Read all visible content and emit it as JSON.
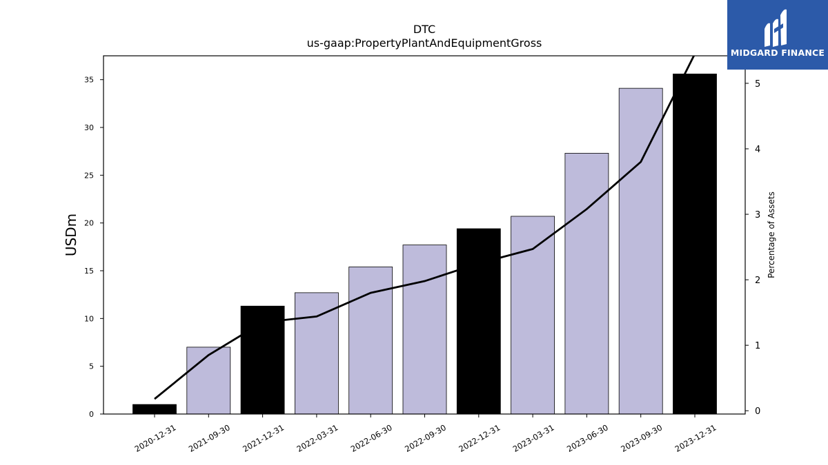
{
  "chart_data": {
    "type": "bar",
    "title": "DTC",
    "subtitle": "us-gaap:PropertyPlantAndEquipmentGross",
    "ylabel": "USDm",
    "y2label": "Percentage of Assets",
    "categories": [
      "2020-12-31",
      "2021-09-30",
      "2021-12-31",
      "2022-03-31",
      "2022-06-30",
      "2022-09-30",
      "2022-12-31",
      "2023-03-31",
      "2023-06-30",
      "2023-09-30",
      "2023-12-31"
    ],
    "values": [
      1.0,
      7.0,
      11.3,
      12.7,
      15.4,
      17.7,
      19.4,
      20.7,
      27.3,
      34.1,
      35.6
    ],
    "bar_colors": [
      "#000000",
      "#bebbdb",
      "#000000",
      "#bebbdb",
      "#bebbdb",
      "#bebbdb",
      "#000000",
      "#bebbdb",
      "#bebbdb",
      "#bebbdb",
      "#000000"
    ],
    "line_series": {
      "axis": "right",
      "color": "#000000",
      "values": [
        0.18,
        0.85,
        1.35,
        1.44,
        1.8,
        1.98,
        2.25,
        2.47,
        3.08,
        3.8,
        5.45
      ]
    },
    "ylim": [
      0,
      37.5
    ],
    "yticks": [
      0,
      5,
      10,
      15,
      20,
      25,
      30,
      35
    ],
    "y2lim": [
      -0.05,
      5.42
    ],
    "y2ticks": [
      0,
      1,
      2,
      3,
      4,
      5
    ],
    "grid": false,
    "legend": "none"
  },
  "logo": {
    "text": "MIDGARD FINANCE",
    "background": "#2c5aa9"
  }
}
